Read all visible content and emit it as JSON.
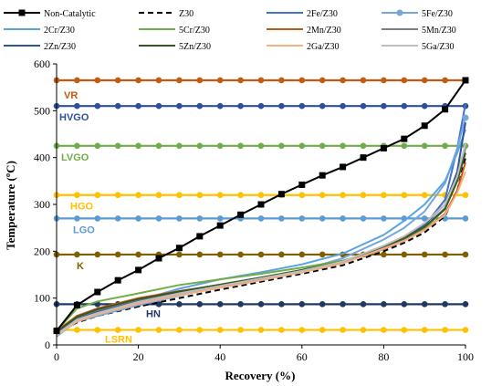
{
  "chart_data": {
    "type": "line",
    "xlabel": "Recovery (%)",
    "ylabel": "Temperature (ºC)",
    "xlim": [
      0,
      100
    ],
    "ylim": [
      0,
      600
    ],
    "xticks": [
      0,
      20,
      40,
      60,
      80,
      100
    ],
    "yticks": [
      0,
      100,
      200,
      300,
      400,
      500,
      600
    ],
    "grid": false,
    "legend_position": "top",
    "series": [
      {
        "name": "Non-Catalytic",
        "color": "#000000",
        "style": "solid",
        "marker": "square",
        "x": [
          0,
          5,
          10,
          15,
          20,
          25,
          30,
          35,
          40,
          45,
          50,
          55,
          60,
          65,
          70,
          75,
          80,
          85,
          90,
          95,
          100
        ],
        "y": [
          30,
          85,
          113,
          138,
          160,
          185,
          207,
          232,
          255,
          278,
          300,
          322,
          342,
          362,
          380,
          400,
          420,
          440,
          468,
          503,
          565
        ]
      },
      {
        "name": "Z30",
        "color": "#000000",
        "style": "dashed",
        "marker": "none",
        "x": [
          0,
          5,
          10,
          20,
          30,
          40,
          50,
          60,
          70,
          80,
          85,
          90,
          95,
          98,
          100
        ],
        "y": [
          25,
          48,
          62,
          82,
          100,
          118,
          135,
          152,
          170,
          200,
          218,
          240,
          275,
          330,
          400
        ]
      },
      {
        "name": "2Fe/Z30",
        "color": "#4472C4",
        "style": "solid",
        "marker": "none",
        "x": [
          0,
          5,
          10,
          20,
          30,
          40,
          50,
          60,
          70,
          80,
          85,
          90,
          95,
          98,
          100
        ],
        "y": [
          25,
          55,
          70,
          92,
          108,
          125,
          140,
          155,
          175,
          205,
          225,
          255,
          310,
          420,
          515
        ]
      },
      {
        "name": "5Fe/Z30",
        "color": "#75A7DB",
        "style": "solid",
        "marker": "circle-end",
        "x": [
          0,
          5,
          10,
          20,
          30,
          40,
          50,
          60,
          70,
          80,
          85,
          90,
          95,
          98,
          100
        ],
        "y": [
          20,
          50,
          62,
          85,
          105,
          125,
          142,
          160,
          185,
          225,
          250,
          285,
          345,
          420,
          485
        ]
      },
      {
        "name": "2Cr/Z30",
        "color": "#5BA3E0",
        "style": "solid",
        "marker": "none",
        "x": [
          0,
          5,
          10,
          20,
          30,
          40,
          50,
          60,
          70,
          80,
          85,
          90,
          95,
          98,
          100
        ],
        "y": [
          18,
          52,
          68,
          95,
          120,
          140,
          155,
          172,
          195,
          235,
          265,
          300,
          350,
          410,
          460
        ]
      },
      {
        "name": "5Cr/Z30",
        "color": "#70AD47",
        "style": "solid",
        "marker": "none",
        "x": [
          0,
          5,
          10,
          20,
          30,
          40,
          50,
          60,
          70,
          80,
          85,
          90,
          95,
          98,
          100
        ],
        "y": [
          30,
          78,
          93,
          110,
          128,
          140,
          152,
          165,
          180,
          205,
          222,
          248,
          290,
          360,
          425
        ]
      },
      {
        "name": "2Mn/Z30",
        "color": "#C55A11",
        "style": "solid",
        "marker": "none",
        "x": [
          0,
          5,
          10,
          20,
          30,
          40,
          50,
          60,
          70,
          80,
          85,
          90,
          95,
          98,
          100
        ],
        "y": [
          30,
          62,
          78,
          100,
          115,
          128,
          142,
          158,
          176,
          205,
          222,
          245,
          280,
          330,
          390
        ]
      },
      {
        "name": "5Mn/Z30",
        "color": "#7F7F7F",
        "style": "solid",
        "marker": "none",
        "x": [
          0,
          5,
          10,
          20,
          30,
          40,
          50,
          60,
          70,
          80,
          85,
          90,
          95,
          98,
          100
        ],
        "y": [
          25,
          58,
          72,
          95,
          112,
          127,
          142,
          158,
          176,
          208,
          226,
          252,
          292,
          350,
          420
        ]
      },
      {
        "name": "2Zn/Z30",
        "color": "#2F5597",
        "style": "solid",
        "marker": "none",
        "x": [
          0,
          5,
          10,
          20,
          30,
          40,
          50,
          60,
          70,
          80,
          85,
          90,
          95,
          98,
          100
        ],
        "y": [
          22,
          55,
          70,
          93,
          110,
          126,
          141,
          157,
          176,
          210,
          230,
          258,
          300,
          370,
          475
        ]
      },
      {
        "name": "5Zn/Z30",
        "color": "#375623",
        "style": "solid",
        "marker": "none",
        "x": [
          0,
          5,
          10,
          20,
          30,
          40,
          50,
          60,
          70,
          80,
          85,
          90,
          95,
          98,
          100
        ],
        "y": [
          28,
          60,
          76,
          98,
          114,
          129,
          144,
          160,
          178,
          210,
          228,
          252,
          290,
          350,
          410
        ]
      },
      {
        "name": "2Ga/Z30",
        "color": "#F4B183",
        "style": "solid",
        "marker": "none",
        "x": [
          0,
          5,
          10,
          20,
          30,
          40,
          50,
          60,
          70,
          80,
          85,
          90,
          95,
          98,
          100
        ],
        "y": [
          20,
          50,
          65,
          88,
          106,
          122,
          138,
          155,
          174,
          206,
          222,
          245,
          278,
          325,
          370
        ]
      },
      {
        "name": "5Ga/Z30",
        "color": "#BFBFBF",
        "style": "solid",
        "marker": "none",
        "x": [
          0,
          5,
          10,
          20,
          30,
          40,
          50,
          60,
          70,
          80,
          85,
          90,
          95,
          98,
          100
        ],
        "y": [
          22,
          54,
          68,
          92,
          110,
          126,
          142,
          158,
          178,
          212,
          232,
          260,
          300,
          360,
          430
        ]
      }
    ],
    "reference_lines": [
      {
        "label": "VR",
        "y": 565,
        "color": "#C55A11"
      },
      {
        "label": "HVGO",
        "y": 510,
        "color": "#2E4FA0"
      },
      {
        "label": "LVGO",
        "y": 425,
        "color": "#70AD47"
      },
      {
        "label": "HGO",
        "y": 320,
        "color": "#FFC000"
      },
      {
        "label": "LGO",
        "y": 270,
        "color": "#5B9BD5"
      },
      {
        "label": "K",
        "y": 193,
        "color": "#7F6000"
      },
      {
        "label": "HN",
        "y": 87,
        "color": "#1F3864"
      },
      {
        "label": "LSRN",
        "y": 32,
        "color": "#FFC000"
      }
    ]
  }
}
